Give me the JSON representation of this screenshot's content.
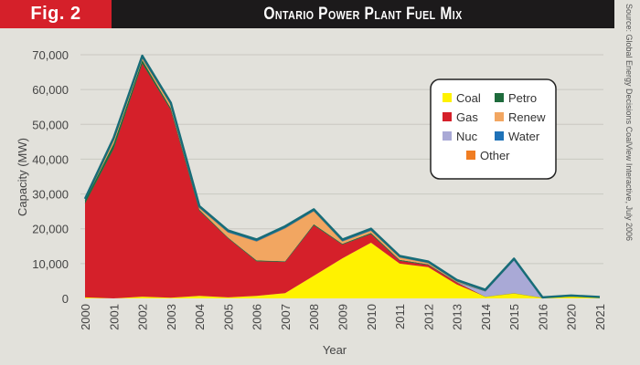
{
  "header": {
    "figure_label": "Fig. 2",
    "title": "Ontario Power Plant Fuel Mix",
    "source": "Source: Global Energy Decisions CoalView Interactive, July 2006"
  },
  "colors": {
    "header_red": "#d5202a",
    "header_black": "#1c1a1b",
    "background": "#e2e1db",
    "Coal": "#fff200",
    "Gas": "#d5202a",
    "Nuc": "#a9a9d6",
    "Petro": "#1e6b3c",
    "Renew": "#f2a661",
    "Water": "#1f72b8",
    "Other": "#f07d22",
    "outline": "#176c78"
  },
  "chart_data": {
    "type": "area",
    "stacked": true,
    "title": "Ontario Power Plant Fuel Mix",
    "xlabel": "Year",
    "ylabel": "Capacity (MW)",
    "ylim": [
      0,
      70000
    ],
    "yticks": [
      0,
      10000,
      20000,
      30000,
      40000,
      50000,
      60000,
      70000
    ],
    "ytick_labels": [
      "0",
      "10,000",
      "20,000",
      "30,000",
      "40,000",
      "50,000",
      "60,000",
      "70,000"
    ],
    "grid": true,
    "legend_position": "top-right",
    "categories": [
      "2000",
      "2001",
      "2002",
      "2003",
      "2004",
      "2005",
      "2006",
      "2007",
      "2008",
      "2009",
      "2010",
      "2011",
      "2012",
      "2013",
      "2014",
      "2015",
      "2016",
      "2020",
      "2021"
    ],
    "series": [
      {
        "name": "Coal",
        "values": [
          300,
          0,
          500,
          200,
          700,
          300,
          700,
          1500,
          6500,
          11500,
          16000,
          10000,
          9000,
          4000,
          500,
          1500,
          200,
          600,
          300
        ]
      },
      {
        "name": "Gas",
        "values": [
          27000,
          43000,
          67000,
          54000,
          24500,
          17000,
          10000,
          9000,
          14500,
          4000,
          2500,
          800,
          600,
          600,
          0,
          0,
          0,
          0,
          0
        ]
      },
      {
        "name": "Nuc",
        "values": [
          0,
          0,
          0,
          0,
          0,
          0,
          0,
          0,
          0,
          0,
          0,
          0,
          0,
          0,
          1500,
          9500,
          0,
          0,
          0
        ]
      },
      {
        "name": "Petro",
        "values": [
          800,
          1500,
          1000,
          500,
          300,
          200,
          200,
          200,
          300,
          200,
          300,
          300,
          200,
          100,
          100,
          0,
          0,
          0,
          0
        ]
      },
      {
        "name": "Renew",
        "values": [
          0,
          1000,
          500,
          1000,
          500,
          1500,
          5500,
          9500,
          3800,
          700,
          700,
          700,
          400,
          200,
          0,
          0,
          0,
          0,
          0
        ]
      },
      {
        "name": "Water",
        "values": [
          500,
          600,
          700,
          500,
          500,
          500,
          500,
          500,
          500,
          500,
          500,
          400,
          400,
          400,
          400,
          400,
          100,
          200,
          100
        ]
      },
      {
        "name": "Other",
        "values": [
          0,
          0,
          0,
          0,
          0,
          0,
          0,
          0,
          0,
          0,
          0,
          0,
          0,
          0,
          0,
          0,
          0,
          0,
          0
        ]
      }
    ],
    "legend": [
      {
        "name": "Coal"
      },
      {
        "name": "Petro"
      },
      {
        "name": "Gas"
      },
      {
        "name": "Renew"
      },
      {
        "name": "Nuc"
      },
      {
        "name": "Water"
      },
      {
        "name": "Other"
      }
    ]
  }
}
